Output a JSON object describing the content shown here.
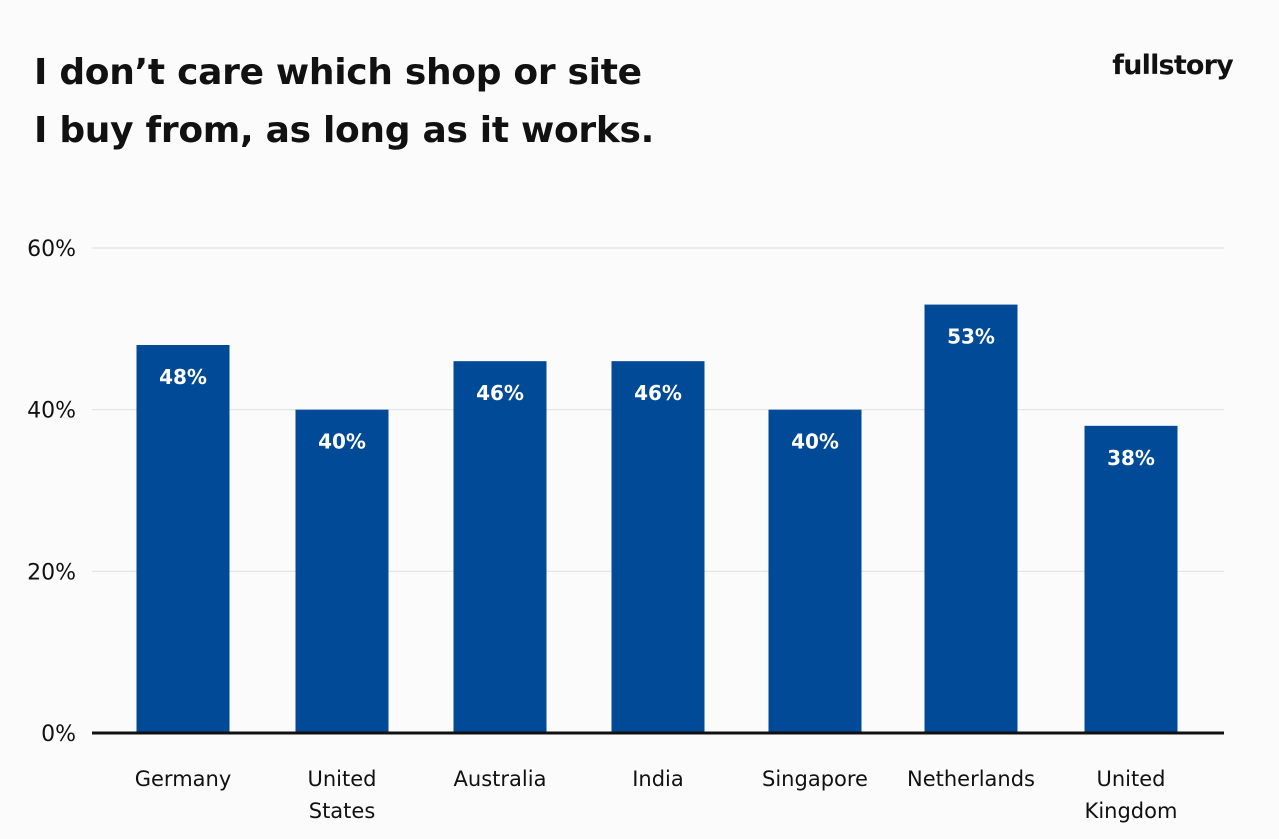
{
  "chart_data": {
    "type": "bar",
    "title": [
      "I don’t care which shop or site",
      "I buy from, as long as it works."
    ],
    "categories": [
      [
        "Germany"
      ],
      [
        "United",
        "States"
      ],
      [
        "Australia"
      ],
      [
        "India"
      ],
      [
        "Singapore"
      ],
      [
        "Netherlands"
      ],
      [
        "United",
        "Kingdom"
      ]
    ],
    "values": [
      48,
      40,
      46,
      46,
      40,
      53,
      38
    ],
    "data_labels": [
      "48%",
      "40%",
      "46%",
      "46%",
      "40%",
      "53%",
      "38%"
    ],
    "ylim": [
      0,
      60
    ],
    "yticks": [
      0,
      20,
      40,
      60
    ],
    "ytick_labels": [
      "0%",
      "20%",
      "40%",
      "60%"
    ],
    "grid": true,
    "xlabel": "",
    "ylabel": ""
  },
  "brand": {
    "logo_text": "fullstory"
  },
  "colors": {
    "bar": "#004a97",
    "grid": "#e2e2e2",
    "axis": "#111111",
    "background": "#fbfbfb"
  }
}
